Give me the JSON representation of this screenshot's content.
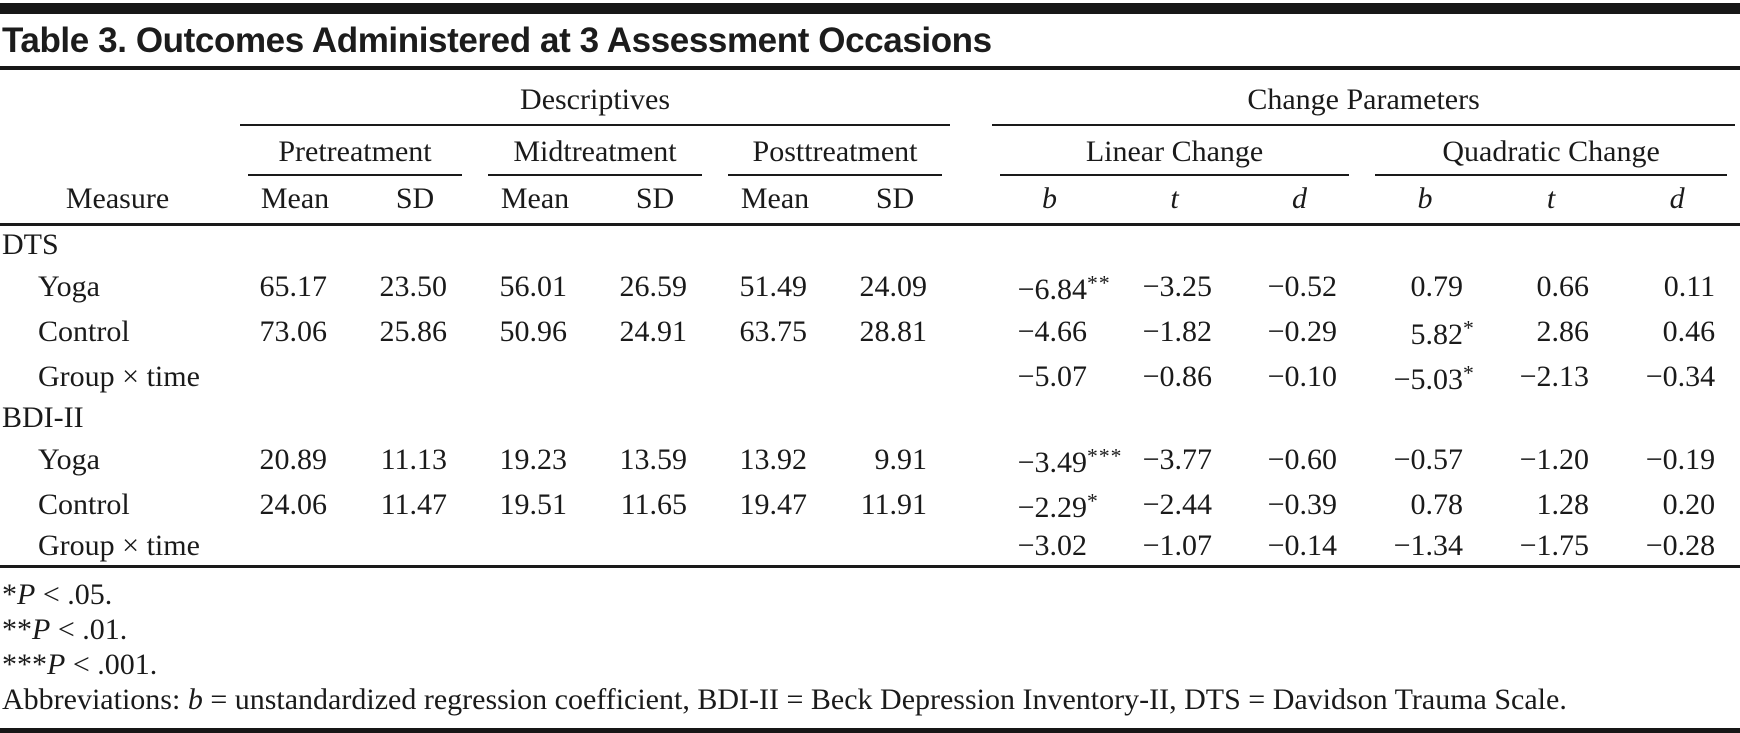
{
  "title": "Table 3. Outcomes Administered at 3 Assessment Occasions",
  "table": {
    "spanners_top": [
      {
        "label": "Descriptives"
      },
      {
        "label": "Change Parameters"
      }
    ],
    "spanners_mid": [
      {
        "label": "Pretreatment"
      },
      {
        "label": "Midtreatment"
      },
      {
        "label": "Posttreatment"
      },
      {
        "label": "Linear Change"
      },
      {
        "label": "Quadratic Change"
      }
    ],
    "measure_header": "Measure",
    "col_headers": [
      "Mean",
      "SD",
      "Mean",
      "SD",
      "Mean",
      "SD",
      "b",
      "t",
      "d",
      "b",
      "t",
      "d"
    ],
    "rows": [
      {
        "type": "section",
        "label": "DTS"
      },
      {
        "type": "data",
        "label": "Yoga",
        "values": [
          "65.17",
          "23.50",
          "56.01",
          "26.59",
          "51.49",
          "24.09",
          "−6.84**",
          "−3.25",
          "−0.52",
          "0.79",
          "0.66",
          "0.11"
        ]
      },
      {
        "type": "data",
        "label": "Control",
        "values": [
          "73.06",
          "25.86",
          "50.96",
          "24.91",
          "63.75",
          "28.81",
          "−4.66",
          "−1.82",
          "−0.29",
          "5.82*",
          "2.86",
          "0.46"
        ]
      },
      {
        "type": "data",
        "label": "Group × time",
        "values": [
          "",
          "",
          "",
          "",
          "",
          "",
          "−5.07",
          "−0.86",
          "−0.10",
          "−5.03*",
          "−2.13",
          "−0.34"
        ]
      },
      {
        "type": "section",
        "label": "BDI-II"
      },
      {
        "type": "data",
        "label": "Yoga",
        "values": [
          "20.89",
          "11.13",
          "19.23",
          "13.59",
          "13.92",
          "9.91",
          "−3.49***",
          "−3.77",
          "−0.60",
          "−0.57",
          "−1.20",
          "−0.19"
        ]
      },
      {
        "type": "data",
        "label": "Control",
        "values": [
          "24.06",
          "11.47",
          "19.51",
          "11.65",
          "19.47",
          "11.91",
          "−2.29*",
          "−2.44",
          "−0.39",
          "0.78",
          "1.28",
          "0.20"
        ]
      },
      {
        "type": "data",
        "label": "Group × time",
        "values": [
          "",
          "",
          "",
          "",
          "",
          "",
          "−3.02",
          "−1.07",
          "−0.14",
          "−1.34",
          "−1.75",
          "−0.28"
        ]
      }
    ]
  },
  "footnotes": [
    {
      "stars": "*",
      "symbol": "P",
      "text": " < .05."
    },
    {
      "stars": "**",
      "symbol": "P",
      "text": " < .01."
    },
    {
      "stars": "***",
      "symbol": "P",
      "text": " < .001."
    }
  ],
  "abbreviations": {
    "prefix": "Abbreviations: ",
    "symbol": "b",
    "suffix": " = unstandardized regression coefficient, BDI-II = Beck Depression Inventory-II, DTS = Davidson Trauma Scale."
  },
  "colors": {
    "text": "#1a1a1a",
    "rule": "#1a1a1a",
    "bar": "#171717",
    "background": "#ffffff"
  }
}
